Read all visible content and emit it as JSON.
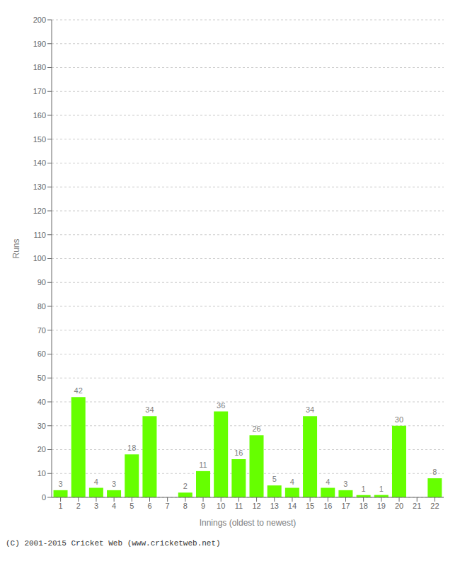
{
  "chart_data": {
    "type": "bar",
    "xlabel": "Innings (oldest to newest)",
    "ylabel": "Runs",
    "categories": [
      1,
      2,
      3,
      4,
      5,
      6,
      7,
      8,
      9,
      10,
      11,
      12,
      13,
      14,
      15,
      16,
      17,
      18,
      19,
      20,
      21,
      22
    ],
    "values": [
      3,
      42,
      4,
      3,
      18,
      34,
      0,
      2,
      11,
      36,
      16,
      26,
      5,
      4,
      34,
      4,
      3,
      1,
      1,
      30,
      0,
      8
    ],
    "color": "#66ff00",
    "ylim": [
      0,
      200
    ],
    "yticks": [
      0,
      10,
      20,
      30,
      40,
      50,
      60,
      70,
      80,
      90,
      100,
      110,
      120,
      130,
      140,
      150,
      160,
      170,
      180,
      190,
      200
    ],
    "grid": true,
    "data_labels": true,
    "annotations": [
      "(C) 2001-2015 Cricket Web (www.cricketweb.net)"
    ]
  }
}
